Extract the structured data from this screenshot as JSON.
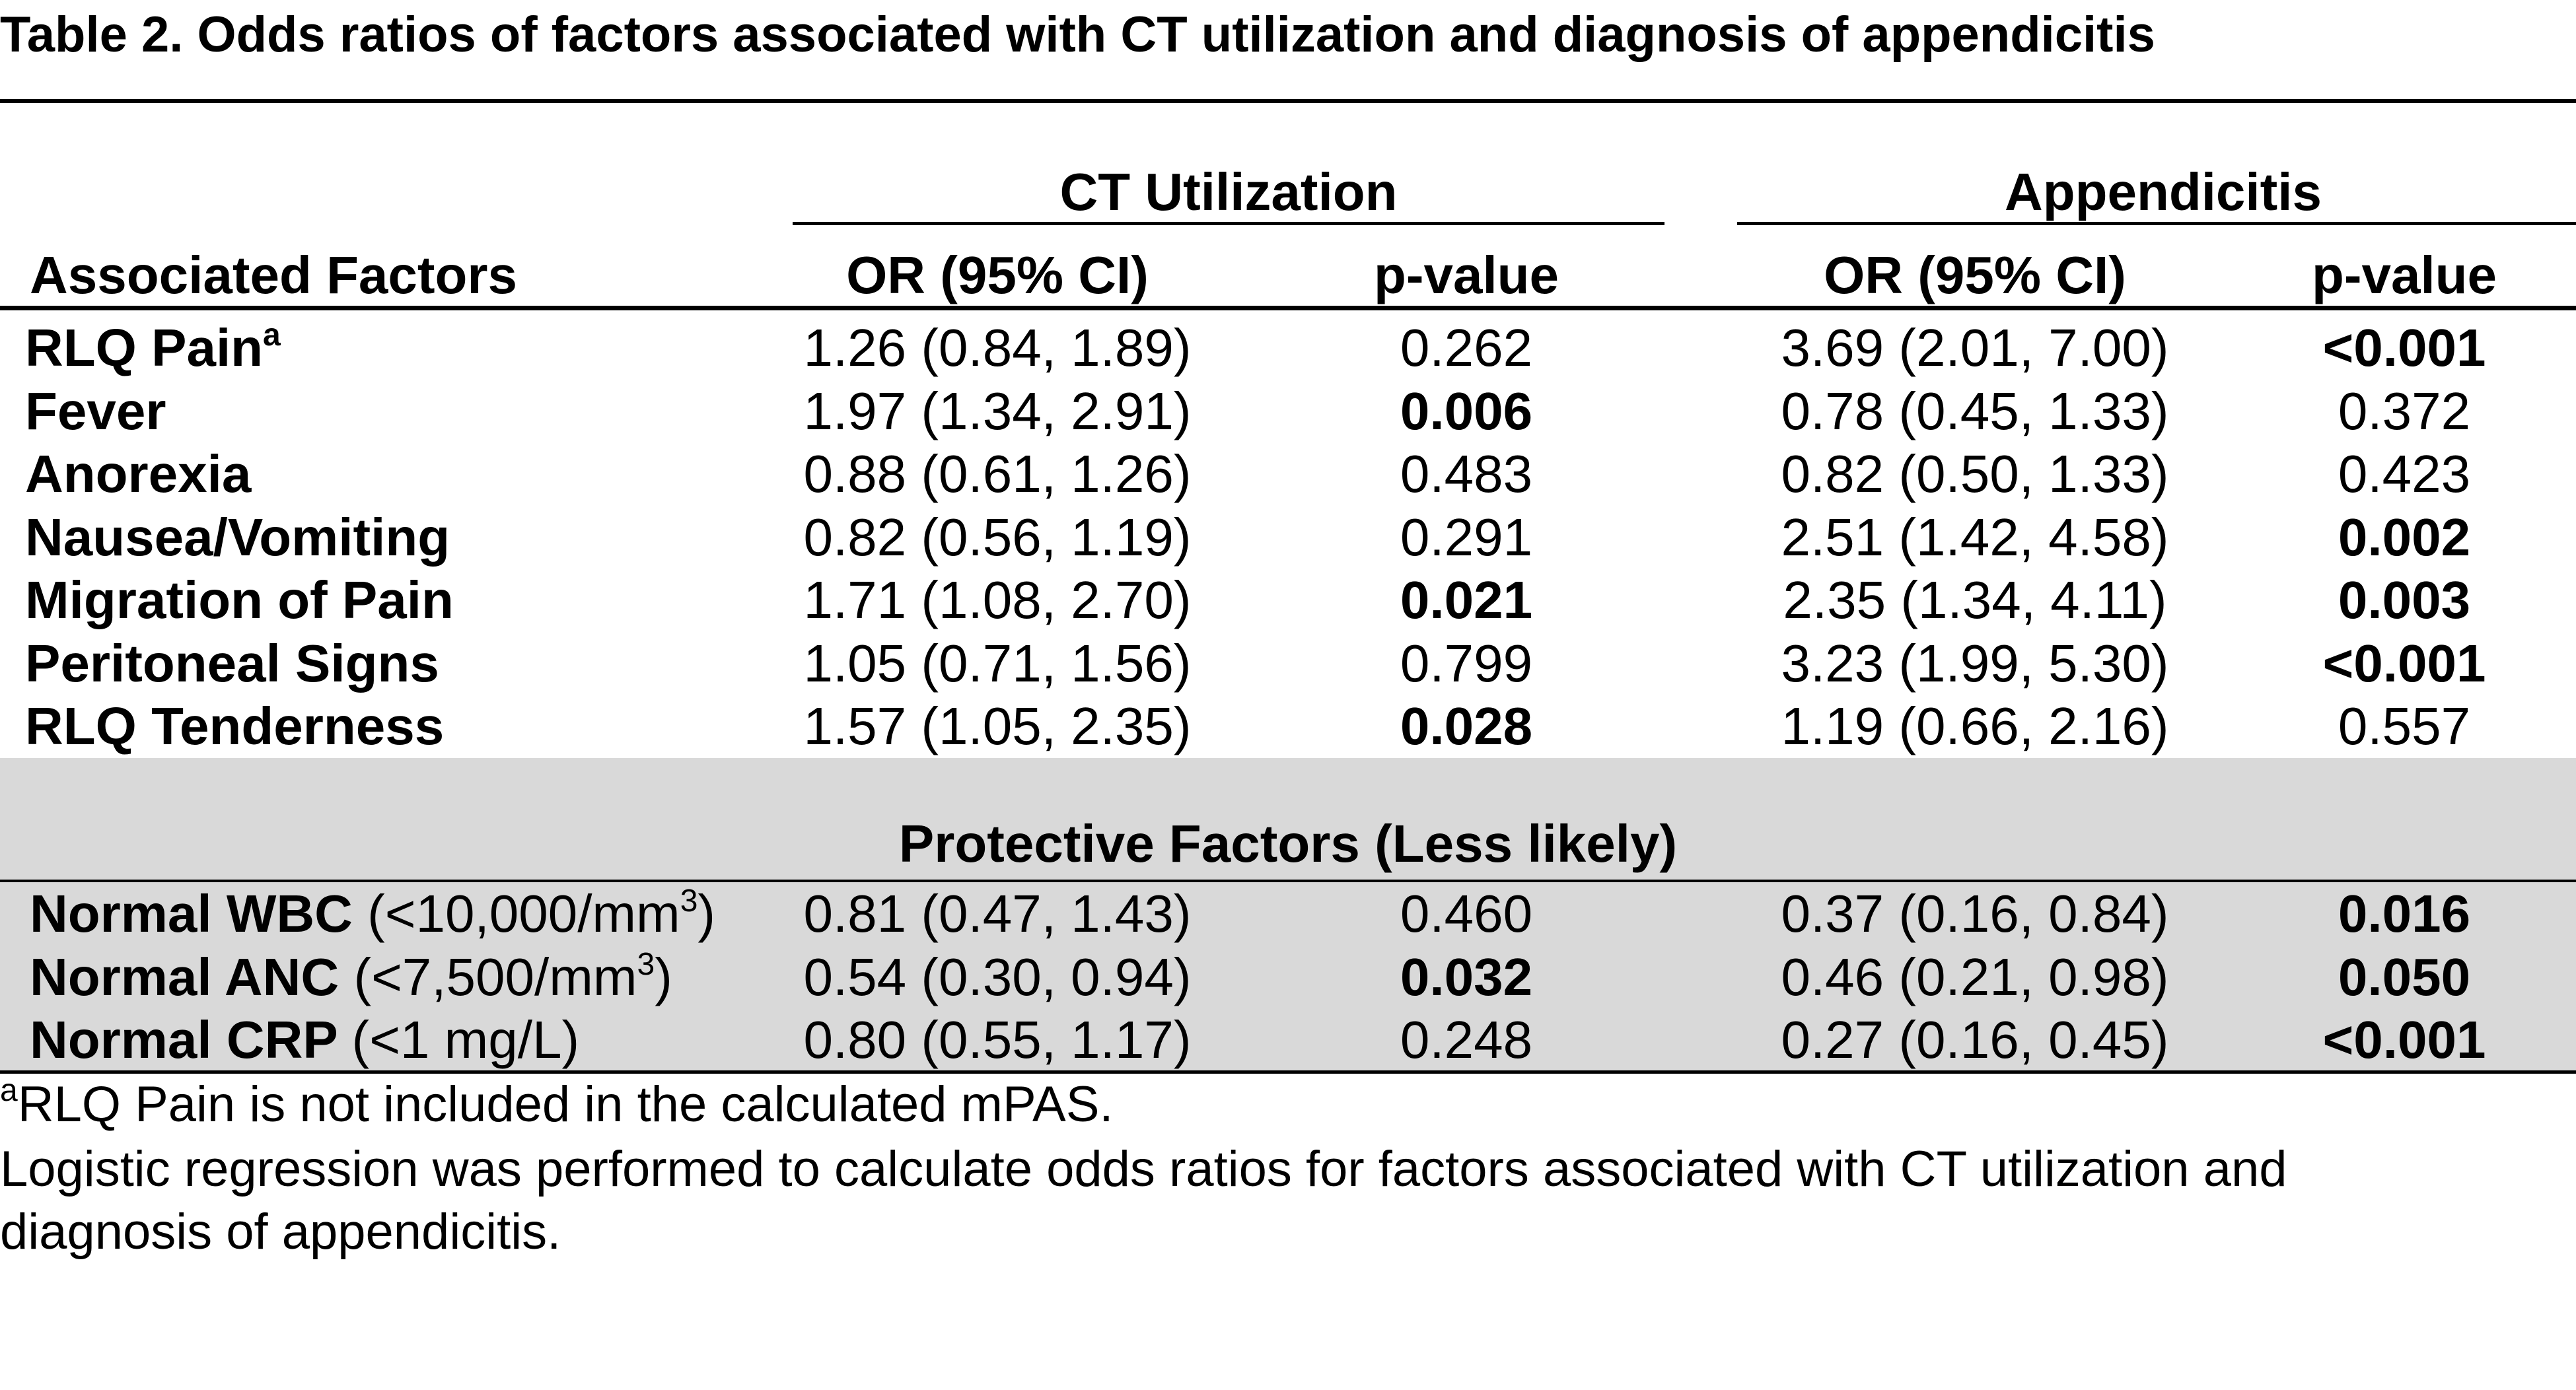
{
  "title": "Table 2.  Odds ratios of factors associated with CT utilization and diagnosis of appendicitis",
  "groups": {
    "ct": "CT Utilization",
    "app": "Appendicitis"
  },
  "columns": {
    "factor": "Associated Factors",
    "ct_or": "OR (95% CI)",
    "ct_p": "p-value",
    "app_or": "OR (95% CI)",
    "app_p": "p-value"
  },
  "rows": [
    {
      "factor": "RLQ Pain",
      "sup": "a",
      "ct_or": "1.26 (0.84, 1.89)",
      "ct_p": "0.262",
      "app_or": "3.69 (2.01, 7.00)",
      "app_p": "<0.001"
    },
    {
      "factor": "Fever",
      "ct_or": "1.97 (1.34, 2.91)",
      "ct_p": "0.006",
      "app_or": "0.78 (0.45, 1.33)",
      "app_p": "0.372"
    },
    {
      "factor": "Anorexia",
      "ct_or": "0.88 (0.61, 1.26)",
      "ct_p": "0.483",
      "app_or": "0.82 (0.50, 1.33)",
      "app_p": "0.423"
    },
    {
      "factor": "Nausea/Vomiting",
      "ct_or": "0.82 (0.56, 1.19)",
      "ct_p": "0.291",
      "app_or": "2.51 (1.42, 4.58)",
      "app_p": "0.002"
    },
    {
      "factor": "Migration of Pain",
      "ct_or": "1.71 (1.08, 2.70)",
      "ct_p": "0.021",
      "app_or": "2.35 (1.34, 4.11)",
      "app_p": "0.003"
    },
    {
      "factor": "Peritoneal Signs",
      "ct_or": "1.05 (0.71, 1.56)",
      "ct_p": "0.799",
      "app_or": "3.23 (1.99, 5.30)",
      "app_p": "<0.001"
    },
    {
      "factor": "RLQ Tenderness",
      "ct_or": "1.57 (1.05, 2.35)",
      "ct_p": "0.028",
      "app_or": "1.19 (0.66, 2.16)",
      "app_p": "0.557"
    }
  ],
  "protective_header": "Protective Factors (Less likely)",
  "protective_rows": [
    {
      "factor": "Normal WBC",
      "unit_pre": "(<10,000/mm",
      "unit_sup": "3",
      "unit_post": ")",
      "ct_or": "0.81 (0.47, 1.43)",
      "ct_p": "0.460",
      "app_or": "0.37 (0.16, 0.84)",
      "app_p": "0.016"
    },
    {
      "factor": "Normal ANC",
      "unit_pre": "(<7,500/mm",
      "unit_sup": "3",
      "unit_post": ")",
      "ct_or": "0.54 (0.30, 0.94)",
      "ct_p": "0.032",
      "app_or": "0.46 (0.21, 0.98)",
      "app_p": "0.050"
    },
    {
      "factor": "Normal CRP",
      "unit_pre": "(<1 mg/L)",
      "unit_sup": "",
      "unit_post": "",
      "ct_or": "0.80 (0.55, 1.17)",
      "ct_p": "0.248",
      "app_or": "0.27 (0.16, 0.45)",
      "app_p": "<0.001"
    }
  ],
  "footnotes": {
    "a_marker": "a",
    "a_text": "RLQ Pain is not included in the calculated mPAS.",
    "line2": "Logistic regression was performed to calculate odds ratios for factors associated with CT utilization and",
    "line3": "diagnosis of appendicitis."
  }
}
